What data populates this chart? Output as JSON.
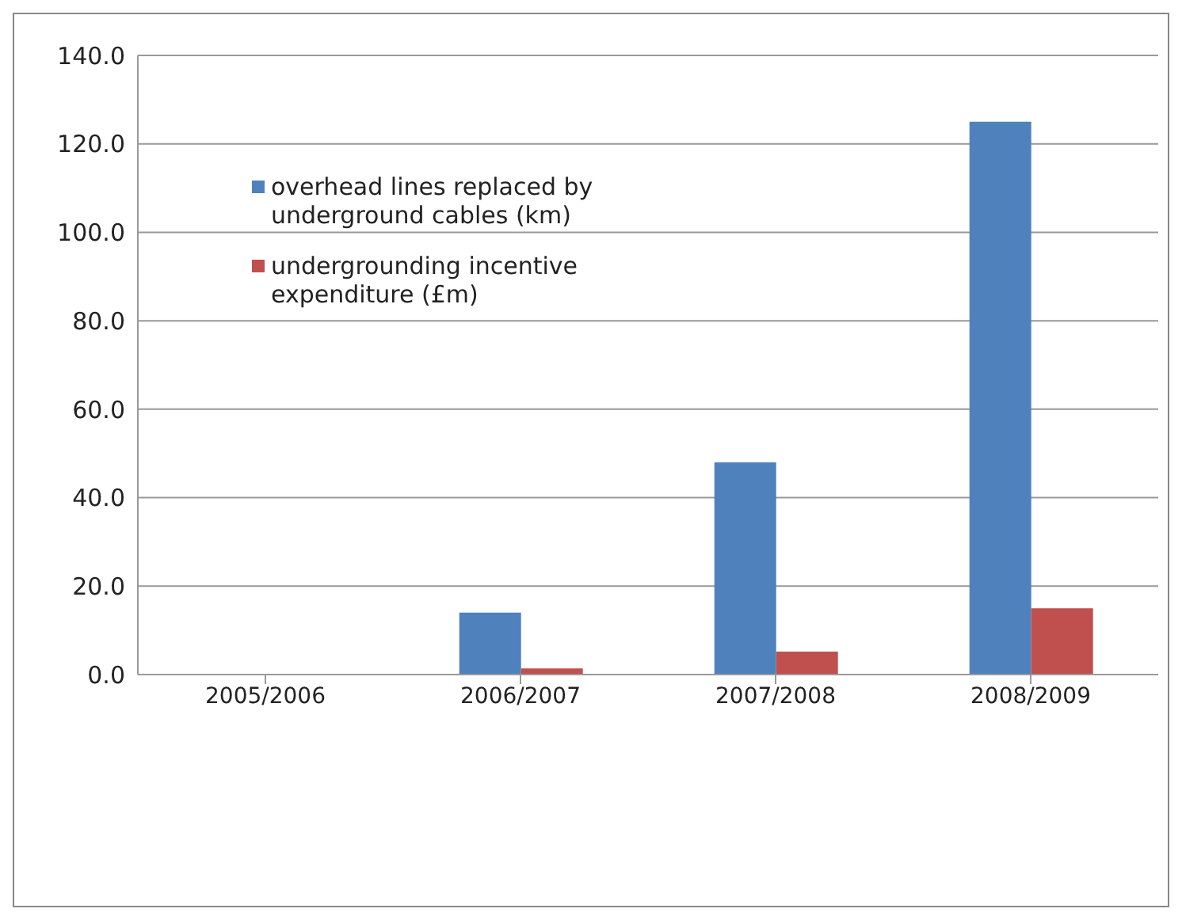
{
  "chart_data": {
    "type": "bar",
    "categories": [
      "2005/2006",
      "2006/2007",
      "2007/2008",
      "2008/2009"
    ],
    "series": [
      {
        "name": "overhead lines replaced by underground cables (km)",
        "color": "#4f81bd",
        "values": [
          0,
          14.0,
          48,
          125
        ]
      },
      {
        "name": "undergrounding incentive expenditure (£m)",
        "color": "#c0504d",
        "values": [
          0,
          1.4,
          5.2,
          15
        ]
      }
    ],
    "ylim": [
      0,
      140
    ],
    "yticks": [
      {
        "value": 0,
        "label": "0.0"
      },
      {
        "value": 20,
        "label": "20.0"
      },
      {
        "value": 40,
        "label": "40.0"
      },
      {
        "value": 60,
        "label": "60.0"
      },
      {
        "value": 80,
        "label": "80.0"
      },
      {
        "value": 100,
        "label": "100.0"
      },
      {
        "value": 120,
        "label": "120.0"
      },
      {
        "value": 140,
        "label": "140.0"
      }
    ],
    "grid": "y",
    "legend": "top left"
  }
}
